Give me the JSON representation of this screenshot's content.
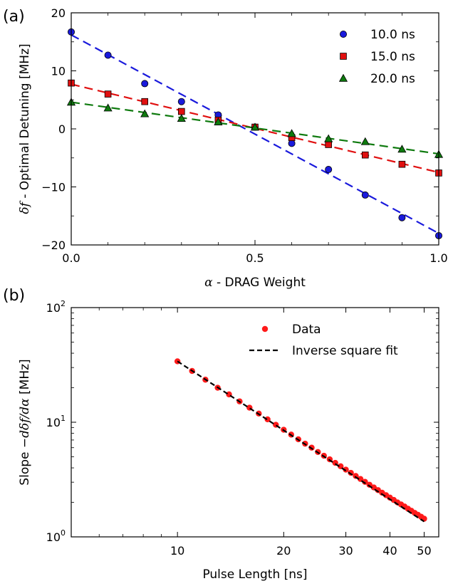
{
  "panel_a": {
    "label": "(a)",
    "y_label_prefix": "δf",
    "y_label_text": " - Optimal Detuning [MHz]",
    "x_label_prefix": "α",
    "x_label_text": " - DRAG Weight"
  },
  "panel_b": {
    "label": "(b)",
    "y_label_prefix": "Slope ",
    "y_label_math": "−dδf/dα",
    "y_label_suffix": " [MHz]",
    "x_label_text": "Pulse Length [ns]"
  },
  "chart_data": [
    {
      "type": "scatter",
      "xlim": [
        0.0,
        1.0
      ],
      "ylim": [
        -20,
        20
      ],
      "x_ticks": [
        {
          "value": 0.0,
          "label": "0.0"
        },
        {
          "value": 0.5,
          "label": "0.5"
        },
        {
          "value": 1.0,
          "label": "1.0"
        }
      ],
      "y_ticks": [
        {
          "value": 20,
          "label": "20"
        },
        {
          "value": 10,
          "label": "10"
        },
        {
          "value": 0,
          "label": "0"
        },
        {
          "value": -10,
          "label": "−10"
        },
        {
          "value": -20,
          "label": "−20"
        }
      ],
      "grid": false,
      "legend_position": "top-right",
      "series": [
        {
          "name": "10.0 ns",
          "marker": "circle",
          "color": "#1a1adc",
          "x": [
            0.0,
            0.1,
            0.2,
            0.3,
            0.4,
            0.5,
            0.6,
            0.7,
            0.8,
            0.9,
            1.0
          ],
          "y": [
            16.7,
            12.7,
            7.8,
            4.7,
            2.4,
            0.3,
            -2.5,
            -7.0,
            -11.4,
            -15.3,
            -18.4
          ],
          "fit": {
            "x": [
              0.0,
              1.0
            ],
            "y": [
              16.2,
              -18.0
            ],
            "style": "dashed",
            "color": "#1a1adc"
          }
        },
        {
          "name": "15.0 ns",
          "marker": "square",
          "color": "#e01010",
          "x": [
            0.0,
            0.1,
            0.2,
            0.3,
            0.4,
            0.5,
            0.6,
            0.7,
            0.8,
            0.9,
            1.0
          ],
          "y": [
            7.9,
            6.0,
            4.7,
            3.0,
            1.5,
            0.3,
            -1.5,
            -2.7,
            -4.5,
            -6.1,
            -7.6
          ],
          "fit": {
            "x": [
              0.0,
              1.0
            ],
            "y": [
              7.7,
              -7.5
            ],
            "style": "dashed",
            "color": "#e01010"
          }
        },
        {
          "name": "20.0 ns",
          "marker": "triangle",
          "color": "#0e7a0e",
          "x": [
            0.0,
            0.1,
            0.2,
            0.3,
            0.4,
            0.5,
            0.6,
            0.7,
            0.8,
            0.9,
            1.0
          ],
          "y": [
            4.6,
            3.6,
            2.6,
            1.8,
            1.2,
            0.3,
            -0.8,
            -1.7,
            -2.2,
            -3.5,
            -4.4
          ],
          "fit": {
            "x": [
              0.0,
              1.0
            ],
            "y": [
              4.6,
              -4.3
            ],
            "style": "dashed",
            "color": "#0e7a0e"
          }
        }
      ]
    },
    {
      "type": "scatter",
      "xscale": "log",
      "yscale": "log",
      "xlim": [
        5,
        55
      ],
      "ylim": [
        1,
        100
      ],
      "x_ticks": [
        {
          "value": 10,
          "label": "10"
        },
        {
          "value": 20,
          "label": "20"
        },
        {
          "value": 30,
          "label": "30"
        },
        {
          "value": 40,
          "label": "40"
        },
        {
          "value": 50,
          "label": "50"
        }
      ],
      "y_ticks": [
        {
          "value": 100,
          "base": "10",
          "exp": "2"
        },
        {
          "value": 10,
          "base": "10",
          "exp": "1"
        },
        {
          "value": 1,
          "base": "10",
          "exp": "0"
        }
      ],
      "grid": false,
      "legend_position": "top-right",
      "series": [
        {
          "name": "Data",
          "marker": "circle",
          "color": "#ff1a1a",
          "x": [
            10,
            11,
            12,
            13,
            14,
            15,
            16,
            17,
            18,
            19,
            20,
            21,
            22,
            23,
            24,
            25,
            26,
            27,
            28,
            29,
            30,
            31,
            32,
            33,
            34,
            35,
            36,
            37,
            38,
            39,
            40,
            41,
            42,
            43,
            44,
            45,
            46,
            47,
            48,
            49,
            50
          ],
          "y": [
            34.0,
            28.0,
            23.5,
            20.0,
            17.5,
            15.2,
            13.4,
            11.9,
            10.6,
            9.5,
            8.6,
            7.8,
            7.1,
            6.5,
            6.0,
            5.5,
            5.1,
            4.75,
            4.42,
            4.13,
            3.86,
            3.62,
            3.4,
            3.2,
            3.02,
            2.85,
            2.7,
            2.56,
            2.43,
            2.31,
            2.2,
            2.1,
            2.0,
            1.92,
            1.84,
            1.76,
            1.69,
            1.62,
            1.56,
            1.5,
            1.44
          ]
        },
        {
          "name": "Inverse square fit",
          "line": "dashed",
          "color": "#000000",
          "x": [
            10,
            50
          ],
          "y": [
            34.0,
            1.36
          ]
        }
      ]
    }
  ]
}
